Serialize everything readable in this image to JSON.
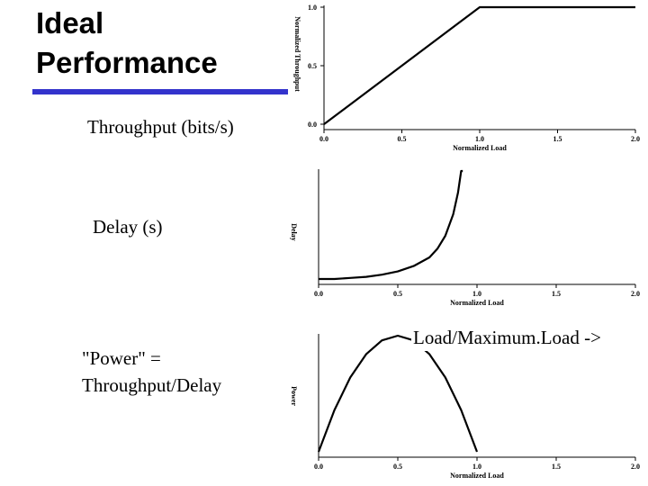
{
  "slide": {
    "title_line1": "Ideal",
    "title_line2": "Performance",
    "title_rule_color": "#3333cc",
    "label_throughput": "Throughput (bits/s)",
    "label_delay": "Delay (s)",
    "label_power_line1": "\"Power\" =",
    "label_power_line2": "Throughput/Delay",
    "label_load": "Load/Maximum.Load ->"
  },
  "chart_data": [
    {
      "type": "line",
      "xlabel": "Normalized Load",
      "ylabel": "Normalized Throughput",
      "xlim": [
        0,
        2
      ],
      "ylim": [
        0,
        1
      ],
      "xticks": [
        "0.0",
        "0.5",
        "1.0",
        "1.5",
        "2.0"
      ],
      "yticks": [
        "0.0",
        "0.5",
        "1.0"
      ],
      "series": [
        {
          "x": [
            0,
            1,
            2
          ],
          "y": [
            0,
            1,
            1
          ]
        }
      ]
    },
    {
      "type": "line",
      "xlabel": "Normalized Load",
      "ylabel": "Delay",
      "xlim": [
        0,
        2
      ],
      "ylim": [
        0,
        1
      ],
      "xticks": [
        "0.0",
        "0.5",
        "1.0",
        "1.5",
        "2.0"
      ],
      "yticks": [],
      "series": [
        {
          "x": [
            0,
            0.1,
            0.2,
            0.3,
            0.4,
            0.5,
            0.6,
            0.7,
            0.75,
            0.8,
            0.85,
            0.88,
            0.9,
            0.91
          ],
          "y": [
            0.0,
            0.0,
            0.01,
            0.02,
            0.04,
            0.07,
            0.12,
            0.2,
            0.28,
            0.4,
            0.6,
            0.8,
            1.0,
            1.0
          ]
        }
      ]
    },
    {
      "type": "line",
      "xlabel": "Normalized Load",
      "ylabel": "Power",
      "xlim": [
        0,
        2
      ],
      "ylim": [
        0,
        1
      ],
      "xticks": [
        "0.0",
        "0.5",
        "1.0",
        "1.5",
        "2.0"
      ],
      "yticks": [],
      "series": [
        {
          "x": [
            0,
            0.1,
            0.2,
            0.3,
            0.4,
            0.5,
            0.6,
            0.7,
            0.8,
            0.9,
            1.0
          ],
          "y": [
            0,
            0.36,
            0.64,
            0.84,
            0.96,
            1.0,
            0.96,
            0.84,
            0.64,
            0.36,
            0
          ]
        }
      ]
    }
  ]
}
